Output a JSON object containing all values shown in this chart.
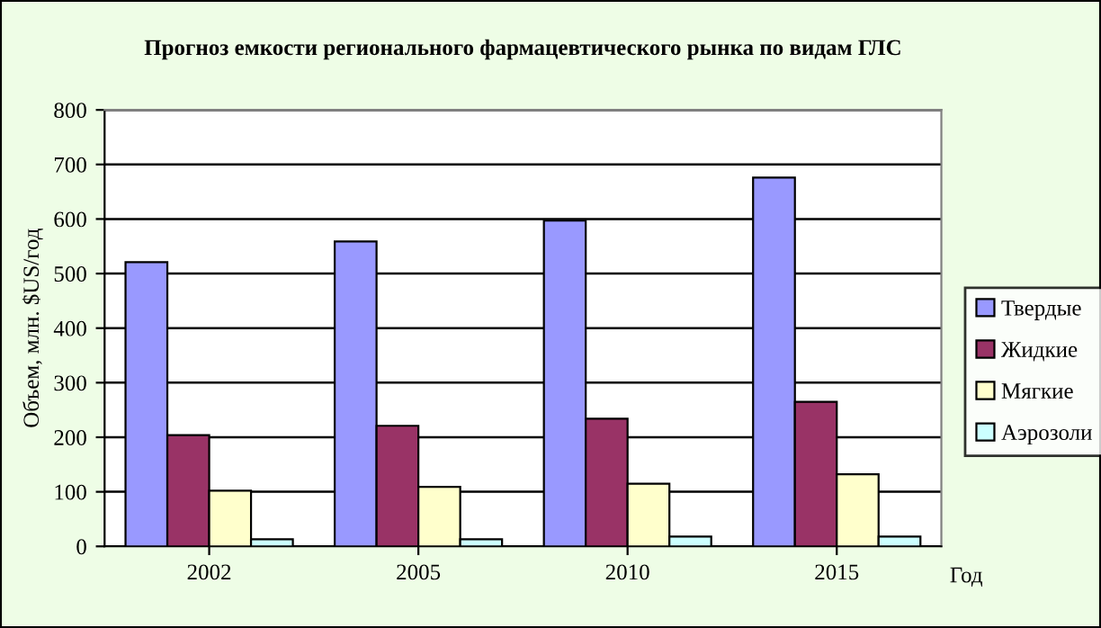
{
  "chart_data": {
    "type": "bar",
    "title": "Прогноз емкости регионального фармацевтического рынка по видам ГЛС",
    "xlabel": "Год",
    "ylabel": "Объем, млн. $US/год",
    "categories": [
      "2002",
      "2005",
      "2010",
      "2015"
    ],
    "series": [
      {
        "name": "Твердые",
        "color": "#9999ff",
        "values": [
          521,
          559,
          597,
          676
        ]
      },
      {
        "name": "Жидкие",
        "color": "#993366",
        "values": [
          204,
          221,
          234,
          265
        ]
      },
      {
        "name": "Мягкие",
        "color": "#ffffcc",
        "values": [
          102,
          109,
          115,
          132
        ]
      },
      {
        "name": "Аэрозоли",
        "color": "#ccffff",
        "values": [
          13,
          13,
          18,
          18
        ]
      }
    ],
    "ylim": [
      0,
      800
    ],
    "yticks": [
      0,
      100,
      200,
      300,
      400,
      500,
      600,
      700,
      800
    ],
    "grid": "y",
    "legend": "right"
  }
}
